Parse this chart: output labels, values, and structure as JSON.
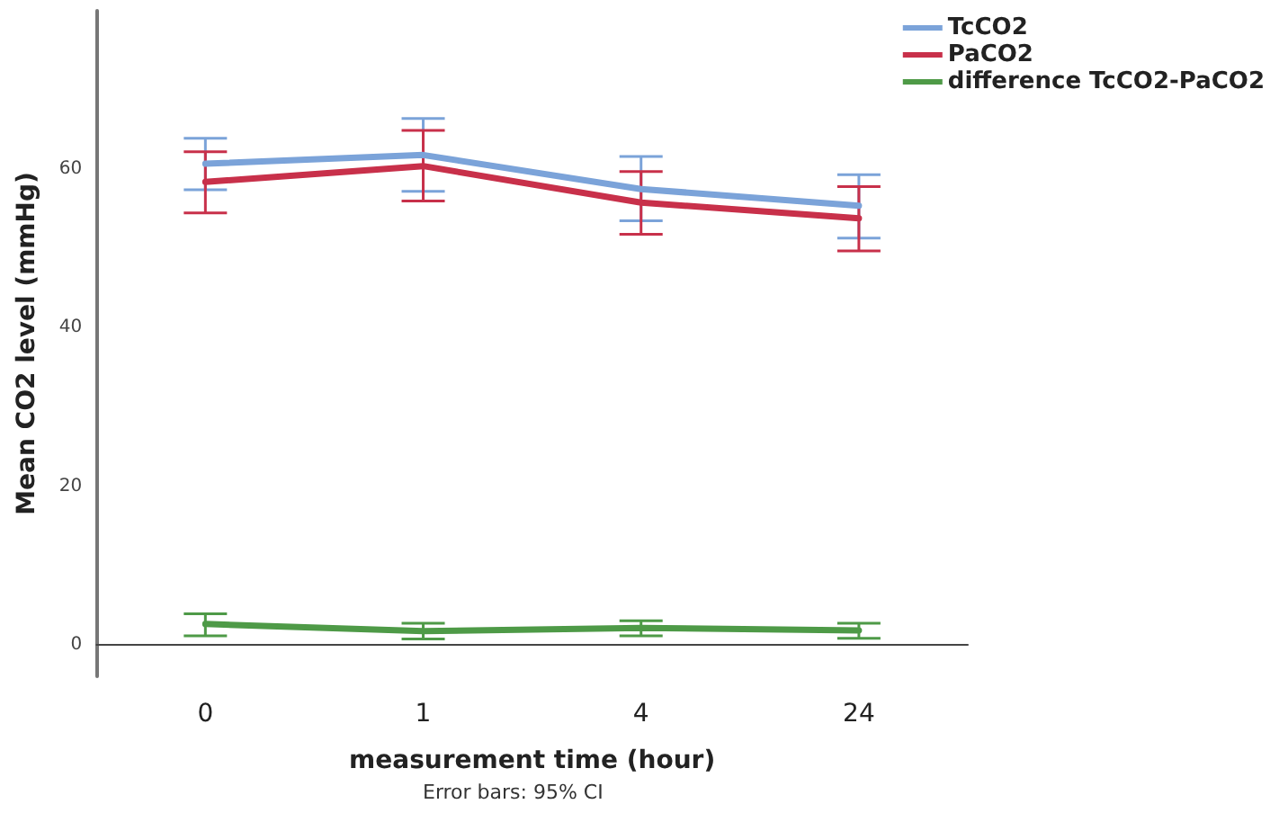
{
  "chart_data": {
    "type": "line",
    "xlabel": "measurement time (hour)",
    "ylabel": "Mean CO2 level (mmHg)",
    "annotations": [
      "Error bars: 95% CI"
    ],
    "categories": [
      "0",
      "1",
      "4",
      "24"
    ],
    "series": [
      {
        "name": "TcCO2",
        "color": "#7ba3d9",
        "values": [
          60.7,
          61.8,
          57.5,
          55.4
        ],
        "errors": [
          [
            57.4,
            63.9
          ],
          [
            57.2,
            66.4
          ],
          [
            53.5,
            61.6
          ],
          [
            51.3,
            59.3
          ]
        ]
      },
      {
        "name": "PaCO2",
        "color": "#c8304a",
        "values": [
          58.4,
          60.4,
          55.8,
          53.8
        ],
        "errors": [
          [
            54.5,
            62.2
          ],
          [
            56.0,
            64.9
          ],
          [
            51.8,
            59.7
          ],
          [
            49.7,
            57.8
          ]
        ]
      },
      {
        "name": "difference TcCO2-PaCO2",
        "color": "#4e9a47",
        "values": [
          2.6,
          1.7,
          2.1,
          1.8
        ],
        "errors": [
          [
            1.1,
            3.9
          ],
          [
            0.7,
            2.7
          ],
          [
            1.1,
            3.0
          ],
          [
            0.8,
            2.7
          ]
        ]
      }
    ],
    "ylim": [
      -4,
      80
    ],
    "yticks": [
      0,
      20,
      40,
      60
    ],
    "grid": false,
    "legend": "top right",
    "marker": "none",
    "line_style": "solid"
  }
}
